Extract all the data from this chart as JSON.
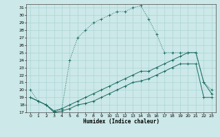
{
  "xlabel": "Humidex (Indice chaleur)",
  "bg_color": "#cce8e8",
  "grid_color": "#aad4d4",
  "line_color": "#1a6b60",
  "xlim": [
    -0.5,
    23.5
  ],
  "ylim": [
    17,
    31.5
  ],
  "yticks": [
    17,
    18,
    19,
    20,
    21,
    22,
    23,
    24,
    25,
    26,
    27,
    28,
    29,
    30,
    31
  ],
  "xticks": [
    0,
    1,
    2,
    3,
    4,
    5,
    6,
    7,
    8,
    9,
    10,
    11,
    12,
    13,
    14,
    15,
    16,
    17,
    18,
    19,
    20,
    21,
    22,
    23
  ],
  "line1_x": [
    0,
    1,
    2,
    3,
    4,
    5,
    6,
    7,
    8,
    9,
    10,
    11,
    12,
    13,
    14,
    15,
    16,
    17,
    18,
    19,
    20,
    21,
    22,
    23
  ],
  "line1_y": [
    20,
    18.5,
    18,
    17,
    17.5,
    24,
    27,
    28,
    29,
    29.5,
    30,
    30.5,
    30.5,
    31,
    31.3,
    29.5,
    27.5,
    25,
    25,
    25,
    25,
    25,
    21,
    20
  ],
  "line2_x": [
    0,
    1,
    2,
    3,
    4,
    5,
    6,
    7,
    8,
    9,
    10,
    11,
    12,
    13,
    14,
    15,
    16,
    17,
    18,
    19,
    20,
    21,
    22,
    23
  ],
  "line2_y": [
    19,
    18.5,
    18,
    17.2,
    17.5,
    18,
    18.5,
    19,
    19.5,
    20,
    20.5,
    21,
    21.5,
    22,
    22.5,
    22.5,
    23,
    23.5,
    24,
    24.5,
    25,
    25,
    21,
    19.5
  ],
  "line3_x": [
    0,
    1,
    2,
    3,
    4,
    5,
    6,
    7,
    8,
    9,
    10,
    11,
    12,
    13,
    14,
    15,
    16,
    17,
    18,
    19,
    20,
    21,
    22,
    23
  ],
  "line3_y": [
    19,
    18.5,
    18,
    17,
    17.2,
    17.5,
    18,
    18.2,
    18.5,
    19,
    19.5,
    20,
    20.5,
    21,
    21.2,
    21.5,
    22,
    22.5,
    23,
    23.5,
    23.5,
    23.5,
    19,
    19
  ]
}
